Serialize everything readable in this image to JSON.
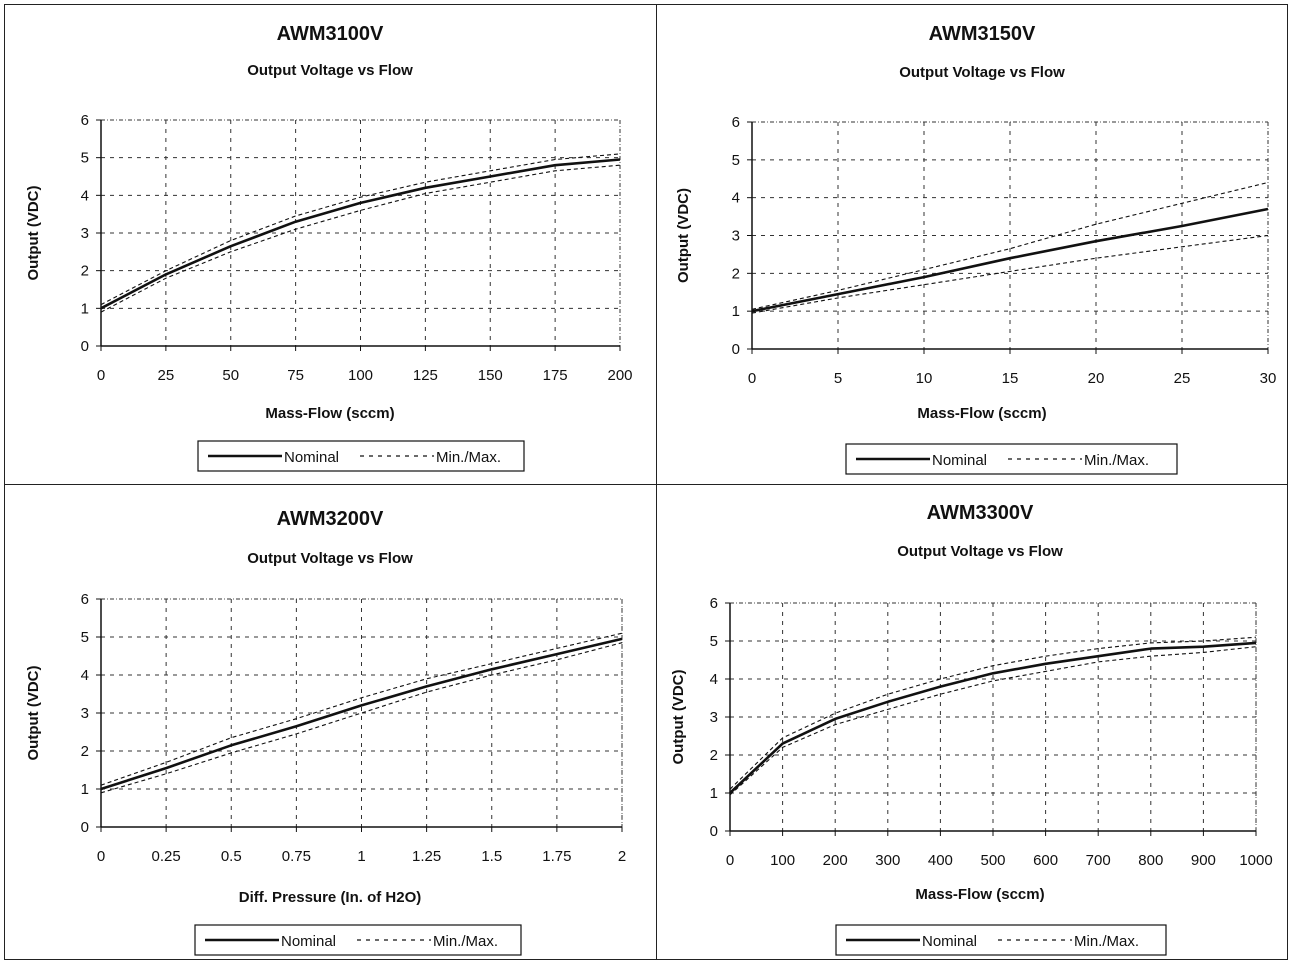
{
  "chart_data": [
    {
      "type": "line",
      "title": "AWM3100V",
      "subtitle": "Output Voltage vs Flow",
      "xlabel": "Mass-Flow (sccm)",
      "ylabel": "Output (VDC)",
      "xlim": [
        0,
        200
      ],
      "ylim": [
        0,
        6
      ],
      "x_ticks": [
        0,
        25,
        50,
        75,
        100,
        125,
        150,
        175,
        200
      ],
      "x_tick_labels": [
        "0",
        "25",
        "50",
        "75",
        "100",
        "125",
        "150",
        "175",
        "200"
      ],
      "y_ticks": [
        0,
        1,
        2,
        3,
        4,
        5,
        6
      ],
      "y_tick_labels": [
        "0",
        "1",
        "2",
        "3",
        "4",
        "5",
        "6"
      ],
      "grid": true,
      "legend": "bottom",
      "legend_entries": [
        "Nominal",
        "Min./Max."
      ],
      "series": [
        {
          "name": "Nominal",
          "style": "solid",
          "x": [
            0,
            25,
            50,
            75,
            100,
            125,
            150,
            175,
            200
          ],
          "y": [
            1.0,
            1.9,
            2.65,
            3.3,
            3.8,
            4.2,
            4.5,
            4.8,
            4.95
          ]
        },
        {
          "name": "Min./Max.",
          "style": "dashed",
          "x": [
            0,
            25,
            50,
            75,
            100,
            125,
            150,
            175,
            200
          ],
          "y": [
            1.1,
            2.0,
            2.8,
            3.45,
            3.95,
            4.35,
            4.65,
            4.95,
            5.1
          ]
        },
        {
          "name": "Min./Max.",
          "style": "dashed",
          "x": [
            0,
            25,
            50,
            75,
            100,
            125,
            150,
            175,
            200
          ],
          "y": [
            0.9,
            1.8,
            2.5,
            3.1,
            3.6,
            4.05,
            4.35,
            4.65,
            4.8
          ]
        }
      ]
    },
    {
      "type": "line",
      "title": "AWM3150V",
      "subtitle": "Output Voltage vs Flow",
      "xlabel": "Mass-Flow (sccm)",
      "ylabel": "Output (VDC)",
      "xlim": [
        0,
        30
      ],
      "ylim": [
        0,
        6
      ],
      "x_ticks": [
        0,
        5,
        10,
        15,
        20,
        25,
        30
      ],
      "x_tick_labels": [
        "0",
        "5",
        "10",
        "15",
        "20",
        "25",
        "30"
      ],
      "y_ticks": [
        0,
        1,
        2,
        3,
        4,
        5,
        6
      ],
      "y_tick_labels": [
        "0",
        "1",
        "2",
        "3",
        "4",
        "5",
        "6"
      ],
      "grid": true,
      "legend": "bottom",
      "legend_entries": [
        "Nominal",
        "Min./Max."
      ],
      "series": [
        {
          "name": "Nominal",
          "style": "solid",
          "x": [
            0,
            5,
            10,
            15,
            20,
            25,
            30
          ],
          "y": [
            1.0,
            1.45,
            1.9,
            2.4,
            2.85,
            3.25,
            3.7
          ]
        },
        {
          "name": "Min./Max.",
          "style": "dashed",
          "x": [
            0,
            5,
            10,
            15,
            20,
            25,
            30
          ],
          "y": [
            1.05,
            1.55,
            2.1,
            2.65,
            3.3,
            3.85,
            4.4
          ]
        },
        {
          "name": "Min./Max.",
          "style": "dashed",
          "x": [
            0,
            5,
            10,
            15,
            20,
            25,
            30
          ],
          "y": [
            0.95,
            1.35,
            1.7,
            2.05,
            2.4,
            2.7,
            3.0
          ]
        }
      ]
    },
    {
      "type": "line",
      "title": "AWM3200V",
      "subtitle": "Output Voltage vs Flow",
      "xlabel": "Diff. Pressure (In. of H2O)",
      "ylabel": "Output (VDC)",
      "xlim": [
        0,
        2
      ],
      "ylim": [
        0,
        6
      ],
      "x_ticks": [
        0,
        0.25,
        0.5,
        0.75,
        1,
        1.25,
        1.5,
        1.75,
        2
      ],
      "x_tick_labels": [
        "0",
        "0.25",
        "0.5",
        "0.75",
        "1",
        "1.25",
        "1.5",
        "1.75",
        "2"
      ],
      "y_ticks": [
        0,
        1,
        2,
        3,
        4,
        5,
        6
      ],
      "y_tick_labels": [
        "0",
        "1",
        "2",
        "3",
        "4",
        "5",
        "6"
      ],
      "grid": true,
      "legend": "bottom",
      "legend_entries": [
        "Nominal",
        "Min./Max."
      ],
      "series": [
        {
          "name": "Nominal",
          "style": "solid",
          "x": [
            0,
            0.25,
            0.5,
            0.75,
            1,
            1.25,
            1.5,
            1.75,
            2
          ],
          "y": [
            1.0,
            1.55,
            2.15,
            2.65,
            3.2,
            3.7,
            4.15,
            4.55,
            4.95
          ]
        },
        {
          "name": "Min./Max.",
          "style": "dashed",
          "x": [
            0,
            0.25,
            0.5,
            0.75,
            1,
            1.25,
            1.5,
            1.75,
            2
          ],
          "y": [
            1.1,
            1.7,
            2.35,
            2.85,
            3.4,
            3.9,
            4.3,
            4.7,
            5.1
          ]
        },
        {
          "name": "Min./Max.",
          "style": "dashed",
          "x": [
            0,
            0.25,
            0.5,
            0.75,
            1,
            1.25,
            1.5,
            1.75,
            2
          ],
          "y": [
            0.9,
            1.4,
            1.95,
            2.45,
            3.0,
            3.55,
            4.0,
            4.4,
            4.85
          ]
        }
      ]
    },
    {
      "type": "line",
      "title": "AWM3300V",
      "subtitle": "Output Voltage vs Flow",
      "xlabel": "Mass-Flow (sccm)",
      "ylabel": "Output (VDC)",
      "xlim": [
        0,
        1000
      ],
      "ylim": [
        0,
        6
      ],
      "x_ticks": [
        0,
        100,
        200,
        300,
        400,
        500,
        600,
        700,
        800,
        900,
        1000
      ],
      "x_tick_labels": [
        "0",
        "100",
        "200",
        "300",
        "400",
        "500",
        "600",
        "700",
        "800",
        "900",
        "1000"
      ],
      "y_ticks": [
        0,
        1,
        2,
        3,
        4,
        5,
        6
      ],
      "y_tick_labels": [
        "0",
        "1",
        "2",
        "3",
        "4",
        "5",
        "6"
      ],
      "grid": true,
      "legend": "bottom",
      "legend_entries": [
        "Nominal",
        "Min./Max."
      ],
      "series": [
        {
          "name": "Nominal",
          "style": "solid",
          "x": [
            0,
            100,
            200,
            300,
            400,
            500,
            600,
            700,
            800,
            900,
            1000
          ],
          "y": [
            1.0,
            2.3,
            2.95,
            3.4,
            3.8,
            4.15,
            4.4,
            4.6,
            4.8,
            4.85,
            4.95
          ]
        },
        {
          "name": "Min./Max.",
          "style": "dashed",
          "x": [
            0,
            100,
            200,
            300,
            400,
            500,
            600,
            700,
            800,
            900,
            1000
          ],
          "y": [
            1.1,
            2.45,
            3.1,
            3.6,
            4.0,
            4.35,
            4.6,
            4.8,
            4.95,
            5.0,
            5.1
          ]
        },
        {
          "name": "Min./Max.",
          "style": "dashed",
          "x": [
            0,
            100,
            200,
            300,
            400,
            500,
            600,
            700,
            800,
            900,
            1000
          ],
          "y": [
            0.95,
            2.2,
            2.8,
            3.2,
            3.6,
            3.95,
            4.2,
            4.45,
            4.6,
            4.7,
            4.85
          ]
        }
      ]
    }
  ]
}
